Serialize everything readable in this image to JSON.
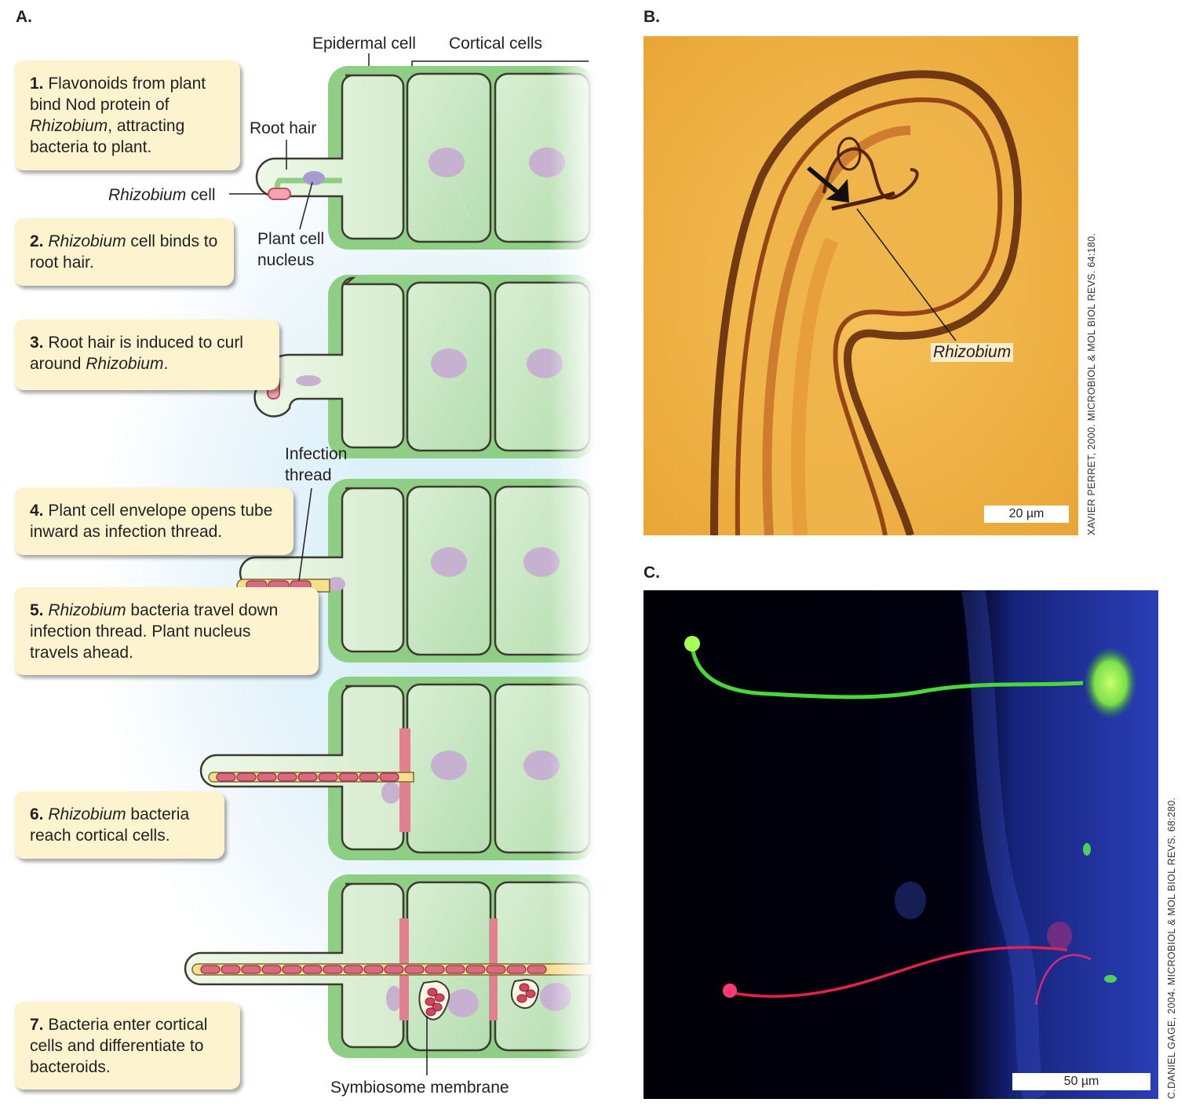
{
  "panels": {
    "a": "A.",
    "b": "B.",
    "c": "C."
  },
  "diagram_labels": {
    "epidermal_cell": "Epidermal cell",
    "cortical_cells": "Cortical cells",
    "root_hair": "Root hair",
    "rhizobium_cell_italic": "Rhizobium",
    "rhizobium_cell_rest": " cell",
    "plant_cell_nucleus_1": "Plant cell",
    "plant_cell_nucleus_2": "nucleus",
    "infection_thread_1": "Infection",
    "infection_thread_2": "thread",
    "symbiosome_membrane": "Symbiosome membrane"
  },
  "steps": [
    {
      "num": "1.",
      "parts": [
        " Flavonoids from plant bind Nod protein of ",
        "Rhizobium",
        ", attracting bacteria to plant."
      ]
    },
    {
      "num": "2.",
      "parts": [
        " ",
        "Rhizobium",
        " cell binds to root hair."
      ]
    },
    {
      "num": "3.",
      "parts": [
        " Root hair is induced to curl around ",
        "Rhizobium",
        "."
      ]
    },
    {
      "num": "4.",
      "parts": [
        " Plant cell envelope opens tube inward as infection thread.",
        "",
        ""
      ]
    },
    {
      "num": "5.",
      "parts": [
        " ",
        "Rhizobium",
        " bacteria travel down infection thread. Plant nucleus travels ahead."
      ]
    },
    {
      "num": "6.",
      "parts": [
        " ",
        "Rhizobium",
        " bacteria reach cortical cells."
      ]
    },
    {
      "num": "7.",
      "parts": [
        " Bacteria enter cortical cells and differentiate to bacteroids.",
        "",
        ""
      ]
    }
  ],
  "photo_b": {
    "label": "Rhizobium",
    "scale": "20 µm",
    "credit": "XAVIER PERRET, 2000. MICROBIOL & MOL BIOL REVS. 64:180."
  },
  "photo_c": {
    "scale": "50 µm",
    "credit": "C.DANIEL GAGE, 2004. MICROBIOL & MOL BIOL REVS. 68:280."
  },
  "colors": {
    "cell_fill": "#b9e0b3",
    "cell_border": "#5aa85a",
    "nucleus": "#c9b3d3",
    "bacterium": "#e77a8d",
    "thread": "#f2dd8c",
    "box_fill": "#fdf3cf"
  }
}
